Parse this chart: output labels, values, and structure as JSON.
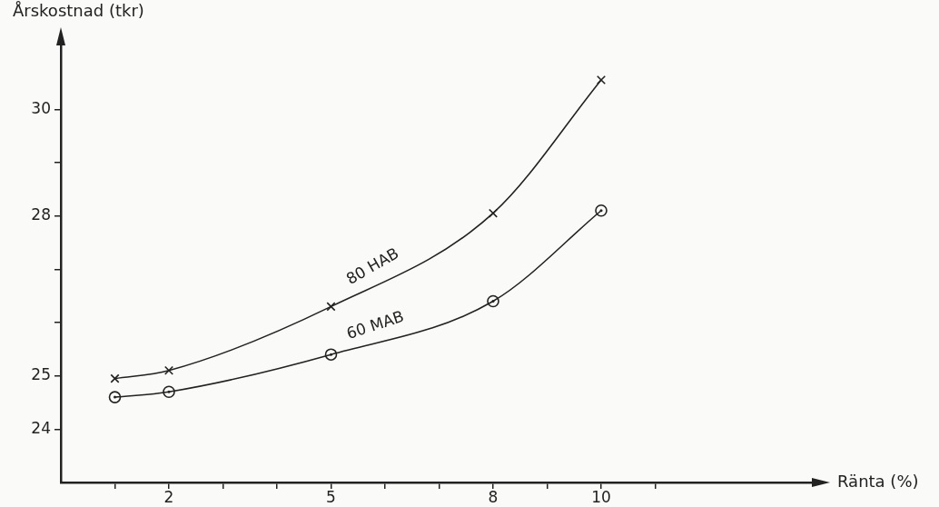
{
  "chart_data": {
    "type": "line",
    "xlabel": "Ränta (%)",
    "ylabel": "Årskostnad (tkr)",
    "x": [
      1,
      2,
      5,
      8,
      10
    ],
    "series": [
      {
        "name": "80 HAB",
        "color": "#222222",
        "marker": "cross",
        "values": [
          24.95,
          25.1,
          26.3,
          28.05,
          30.55
        ]
      },
      {
        "name": "60 MAB",
        "color": "#222222",
        "marker": "circle",
        "values": [
          24.6,
          24.7,
          25.4,
          26.4,
          28.1
        ]
      }
    ],
    "xlim": [
      0,
      14
    ],
    "ylim": [
      23,
      31.3
    ],
    "xticks": [
      {
        "value": 1,
        "label": null
      },
      2,
      {
        "value": 3,
        "label": null
      },
      {
        "value": 4,
        "label": null
      },
      5,
      {
        "value": 6,
        "label": null
      },
      {
        "value": 7,
        "label": null
      },
      8,
      {
        "value": 9,
        "label": null
      },
      10,
      {
        "value": 11,
        "label": null
      }
    ],
    "yticks": [
      24,
      25,
      {
        "value": 26,
        "label": null
      },
      {
        "value": 27,
        "label": null
      },
      28,
      {
        "value": 29,
        "label": null
      },
      30
    ],
    "grid": false,
    "legend": false
  }
}
